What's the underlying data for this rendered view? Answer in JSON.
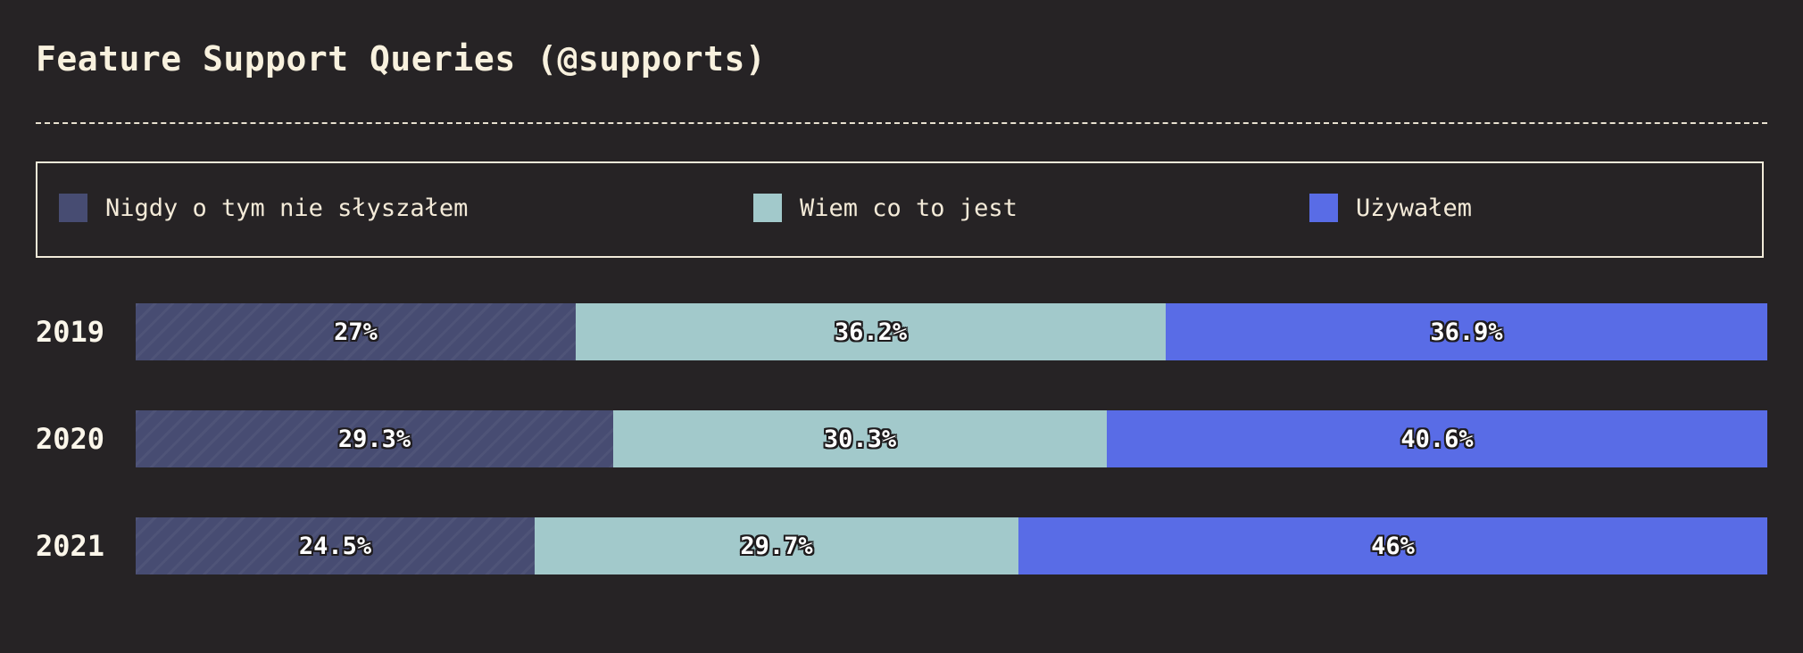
{
  "title": "Feature Support Queries (@supports)",
  "legend": [
    {
      "label": "Nigdy o tym nie słyszałem",
      "color": "#474c72"
    },
    {
      "label": "Wiem co to jest",
      "color": "#a2c9cb"
    },
    {
      "label": "Używałem",
      "color": "#596ce6"
    }
  ],
  "chart_data": {
    "type": "bar",
    "orientation": "horizontal",
    "stacked": true,
    "normalized": true,
    "categories": [
      "2019",
      "2020",
      "2021"
    ],
    "series": [
      {
        "name": "Nigdy o tym nie słyszałem",
        "values": [
          27,
          29.3,
          24.5
        ],
        "labels": [
          "27%",
          "29.3%",
          "24.5%"
        ]
      },
      {
        "name": "Wiem co to jest",
        "values": [
          36.2,
          30.3,
          29.7
        ],
        "labels": [
          "36.2%",
          "30.3%",
          "29.7%"
        ]
      },
      {
        "name": "Używałem",
        "values": [
          36.9,
          40.6,
          46
        ],
        "labels": [
          "36.9%",
          "40.6%",
          "46%"
        ]
      }
    ],
    "title": "Feature Support Queries (@supports)",
    "legend_position": "top",
    "grid": false
  }
}
